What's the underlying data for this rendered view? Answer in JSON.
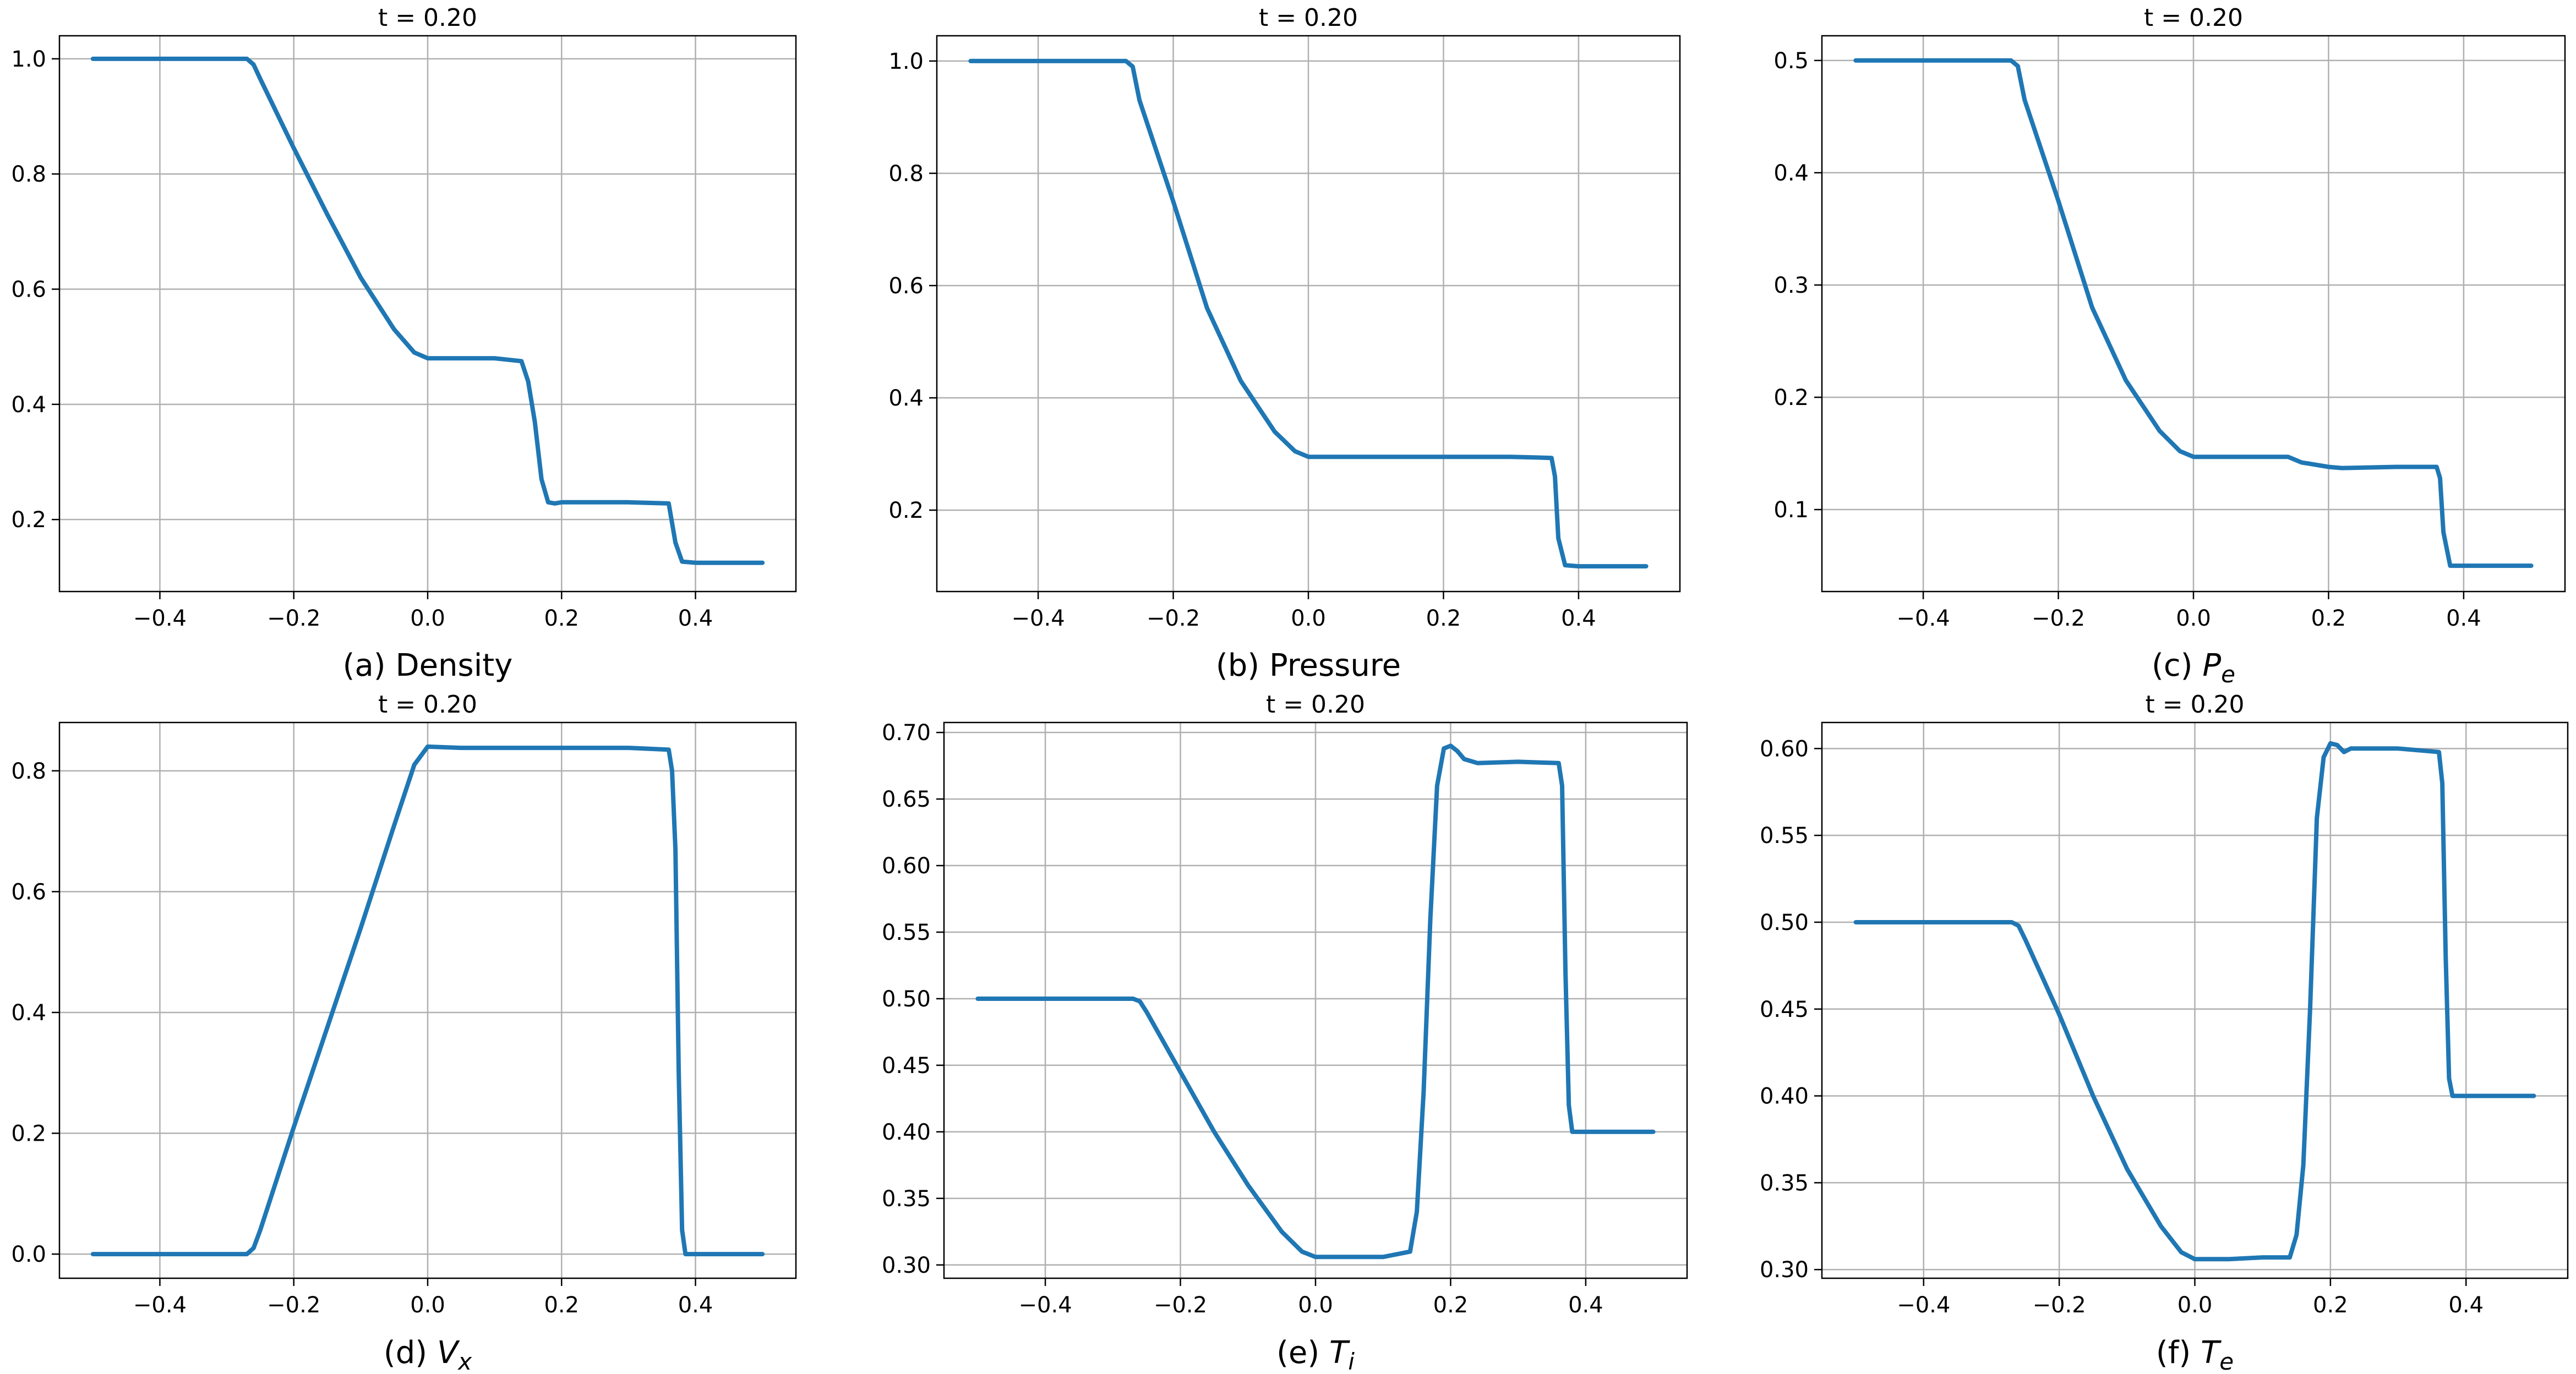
{
  "figure": {
    "background": "#ffffff",
    "line_color": "#1f77b4",
    "grid_color": "#b0b0b0"
  },
  "chart_data": [
    {
      "id": "a",
      "type": "line",
      "title": "t = 0.20",
      "caption": {
        "prefix": "(a) Density",
        "symbol": "",
        "subscript": ""
      },
      "xlim": [
        -0.55,
        0.55
      ],
      "ylim": [
        0.075,
        1.04
      ],
      "xticks": [
        -0.4,
        -0.2,
        0.0,
        0.2,
        0.4
      ],
      "xtick_labels": [
        "−0.4",
        "−0.2",
        "0.0",
        "0.2",
        "0.4"
      ],
      "yticks": [
        0.2,
        0.4,
        0.6,
        0.8,
        1.0
      ],
      "ytick_labels": [
        "0.2",
        "0.4",
        "0.6",
        "0.8",
        "1.0"
      ],
      "grid": true,
      "series": [
        {
          "x": [
            -0.5,
            -0.27,
            -0.26,
            -0.25,
            -0.2,
            -0.15,
            -0.1,
            -0.05,
            -0.02,
            0.0,
            0.05,
            0.1,
            0.14,
            0.15,
            0.16,
            0.17,
            0.18,
            0.19,
            0.2,
            0.25,
            0.3,
            0.36,
            0.37,
            0.38,
            0.4,
            0.5
          ],
          "y": [
            1.0,
            1.0,
            0.99,
            0.965,
            0.845,
            0.73,
            0.62,
            0.53,
            0.49,
            0.48,
            0.48,
            0.48,
            0.475,
            0.44,
            0.37,
            0.27,
            0.23,
            0.228,
            0.23,
            0.23,
            0.23,
            0.228,
            0.16,
            0.127,
            0.125,
            0.125
          ]
        }
      ]
    },
    {
      "id": "b",
      "type": "line",
      "title": "t = 0.20",
      "caption": {
        "prefix": "(b) Pressure",
        "symbol": "",
        "subscript": ""
      },
      "xlim": [
        -0.55,
        0.55
      ],
      "ylim": [
        0.055,
        1.045
      ],
      "xticks": [
        -0.4,
        -0.2,
        0.0,
        0.2,
        0.4
      ],
      "xtick_labels": [
        "−0.4",
        "−0.2",
        "0.0",
        "0.2",
        "0.4"
      ],
      "yticks": [
        0.2,
        0.4,
        0.6,
        0.8,
        1.0
      ],
      "ytick_labels": [
        "0.2",
        "0.4",
        "0.6",
        "0.8",
        "1.0"
      ],
      "grid": true,
      "series": [
        {
          "x": [
            -0.5,
            -0.27,
            -0.26,
            -0.25,
            -0.2,
            -0.15,
            -0.1,
            -0.05,
            -0.02,
            0.0,
            0.05,
            0.1,
            0.2,
            0.3,
            0.36,
            0.365,
            0.37,
            0.38,
            0.4,
            0.5
          ],
          "y": [
            1.0,
            1.0,
            0.99,
            0.93,
            0.75,
            0.56,
            0.43,
            0.34,
            0.305,
            0.295,
            0.295,
            0.295,
            0.295,
            0.295,
            0.293,
            0.26,
            0.15,
            0.102,
            0.1,
            0.1
          ]
        }
      ]
    },
    {
      "id": "c",
      "type": "line",
      "title": "t = 0.20",
      "caption": {
        "prefix": "(c) ",
        "symbol": "P",
        "subscript": "e"
      },
      "xlim": [
        -0.55,
        0.55
      ],
      "ylim": [
        0.027,
        0.522
      ],
      "xticks": [
        -0.4,
        -0.2,
        0.0,
        0.2,
        0.4
      ],
      "xtick_labels": [
        "−0.4",
        "−0.2",
        "0.0",
        "0.2",
        "0.4"
      ],
      "yticks": [
        0.1,
        0.2,
        0.3,
        0.4,
        0.5
      ],
      "ytick_labels": [
        "0.1",
        "0.2",
        "0.3",
        "0.4",
        "0.5"
      ],
      "grid": true,
      "series": [
        {
          "x": [
            -0.5,
            -0.27,
            -0.26,
            -0.25,
            -0.2,
            -0.15,
            -0.1,
            -0.05,
            -0.02,
            0.0,
            0.05,
            0.1,
            0.14,
            0.16,
            0.2,
            0.22,
            0.3,
            0.36,
            0.365,
            0.37,
            0.38,
            0.4,
            0.5
          ],
          "y": [
            0.5,
            0.5,
            0.495,
            0.465,
            0.375,
            0.28,
            0.215,
            0.17,
            0.152,
            0.147,
            0.147,
            0.147,
            0.147,
            0.142,
            0.138,
            0.137,
            0.138,
            0.138,
            0.128,
            0.08,
            0.05,
            0.05,
            0.05
          ]
        }
      ]
    },
    {
      "id": "d",
      "type": "line",
      "title": "t = 0.20",
      "caption": {
        "prefix": "(d) ",
        "symbol": "V",
        "subscript": "x"
      },
      "xlim": [
        -0.55,
        0.55
      ],
      "ylim": [
        -0.04,
        0.88
      ],
      "xticks": [
        -0.4,
        -0.2,
        0.0,
        0.2,
        0.4
      ],
      "xtick_labels": [
        "−0.4",
        "−0.2",
        "0.0",
        "0.2",
        "0.4"
      ],
      "yticks": [
        0.0,
        0.2,
        0.4,
        0.6,
        0.8
      ],
      "ytick_labels": [
        "0.0",
        "0.2",
        "0.4",
        "0.6",
        "0.8"
      ],
      "grid": true,
      "series": [
        {
          "x": [
            -0.5,
            -0.27,
            -0.26,
            -0.25,
            -0.2,
            -0.1,
            -0.05,
            -0.02,
            0.0,
            0.05,
            0.1,
            0.2,
            0.3,
            0.36,
            0.365,
            0.37,
            0.375,
            0.38,
            0.385,
            0.4,
            0.5
          ],
          "y": [
            0.0,
            0.0,
            0.01,
            0.04,
            0.21,
            0.54,
            0.71,
            0.81,
            0.84,
            0.838,
            0.838,
            0.838,
            0.838,
            0.835,
            0.8,
            0.67,
            0.3,
            0.04,
            0.0,
            0.0,
            0.0
          ]
        }
      ]
    },
    {
      "id": "e",
      "type": "line",
      "title": "t = 0.20",
      "caption": {
        "prefix": "(e) ",
        "symbol": "T",
        "subscript": "i"
      },
      "xlim": [
        -0.55,
        0.55
      ],
      "ylim": [
        0.29,
        0.7075
      ],
      "xticks": [
        -0.4,
        -0.2,
        0.0,
        0.2,
        0.4
      ],
      "xtick_labels": [
        "−0.4",
        "−0.2",
        "0.0",
        "0.2",
        "0.4"
      ],
      "yticks": [
        0.3,
        0.35,
        0.4,
        0.45,
        0.5,
        0.55,
        0.6,
        0.65,
        0.7
      ],
      "ytick_labels": [
        "0.30",
        "0.35",
        "0.40",
        "0.45",
        "0.50",
        "0.55",
        "0.60",
        "0.65",
        "0.70"
      ],
      "grid": true,
      "series": [
        {
          "x": [
            -0.5,
            -0.27,
            -0.26,
            -0.25,
            -0.2,
            -0.15,
            -0.1,
            -0.05,
            -0.02,
            0.0,
            0.05,
            0.1,
            0.14,
            0.15,
            0.16,
            0.17,
            0.18,
            0.19,
            0.2,
            0.21,
            0.22,
            0.24,
            0.3,
            0.36,
            0.365,
            0.37,
            0.375,
            0.38,
            0.4,
            0.5
          ],
          "y": [
            0.5,
            0.5,
            0.498,
            0.49,
            0.445,
            0.4,
            0.36,
            0.325,
            0.31,
            0.306,
            0.306,
            0.306,
            0.31,
            0.34,
            0.43,
            0.56,
            0.66,
            0.688,
            0.69,
            0.686,
            0.68,
            0.677,
            0.678,
            0.677,
            0.66,
            0.52,
            0.42,
            0.4,
            0.4,
            0.4
          ]
        }
      ]
    },
    {
      "id": "f",
      "type": "line",
      "title": "t = 0.20",
      "caption": {
        "prefix": "(f) ",
        "symbol": "T",
        "subscript": "e"
      },
      "xlim": [
        -0.55,
        0.55
      ],
      "ylim": [
        0.295,
        0.615
      ],
      "xticks": [
        -0.4,
        -0.2,
        0.0,
        0.2,
        0.4
      ],
      "xtick_labels": [
        "−0.4",
        "−0.2",
        "0.0",
        "0.2",
        "0.4"
      ],
      "yticks": [
        0.3,
        0.35,
        0.4,
        0.45,
        0.5,
        0.55,
        0.6
      ],
      "ytick_labels": [
        "0.30",
        "0.35",
        "0.40",
        "0.45",
        "0.50",
        "0.55",
        "0.60"
      ],
      "grid": true,
      "series": [
        {
          "x": [
            -0.5,
            -0.27,
            -0.26,
            -0.25,
            -0.2,
            -0.15,
            -0.1,
            -0.05,
            -0.02,
            0.0,
            0.05,
            0.1,
            0.14,
            0.15,
            0.16,
            0.17,
            0.18,
            0.19,
            0.2,
            0.21,
            0.22,
            0.23,
            0.25,
            0.3,
            0.36,
            0.365,
            0.37,
            0.375,
            0.38,
            0.4,
            0.5
          ],
          "y": [
            0.5,
            0.5,
            0.498,
            0.49,
            0.447,
            0.4,
            0.358,
            0.325,
            0.31,
            0.306,
            0.306,
            0.307,
            0.307,
            0.32,
            0.36,
            0.45,
            0.56,
            0.595,
            0.603,
            0.602,
            0.598,
            0.6,
            0.6,
            0.6,
            0.598,
            0.58,
            0.48,
            0.41,
            0.4,
            0.4,
            0.4
          ]
        }
      ]
    }
  ]
}
